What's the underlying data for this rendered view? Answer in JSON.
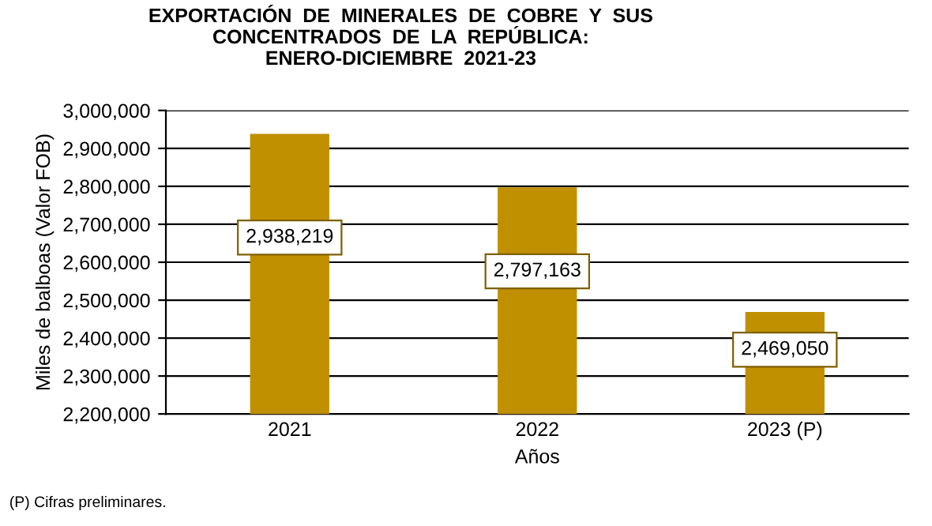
{
  "chart_data": {
    "type": "bar",
    "title": "EXPORTACIÓN  DE  MINERALES  DE  COBRE  Y  SUS\nCONCENTRADOS  DE  LA  REPÚBLICA:\nENERO-DICIEMBRE  2021-23",
    "xlabel": "Años",
    "ylabel": "Miles de balboas (Valor FOB)",
    "categories": [
      "2021",
      "2022",
      "2023 (P)"
    ],
    "values": [
      2938219,
      2797163,
      2469050
    ],
    "value_labels": [
      "2,938,219",
      "2,797,163",
      "2,469,050"
    ],
    "color": "#c09000",
    "ylim": [
      2200000,
      3000000
    ],
    "yticks": [
      {
        "value": 2200000,
        "label": "2,200,000"
      },
      {
        "value": 2300000,
        "label": "2,300,000"
      },
      {
        "value": 2400000,
        "label": "2,400,000"
      },
      {
        "value": 2500000,
        "label": "2,500,000"
      },
      {
        "value": 2600000,
        "label": "2,600,000"
      },
      {
        "value": 2700000,
        "label": "2,700,000"
      },
      {
        "value": 2800000,
        "label": "2,800,000"
      },
      {
        "value": 2900000,
        "label": "2,900,000"
      },
      {
        "value": 3000000,
        "label": "3,000,000"
      }
    ],
    "grid": "y",
    "annotations": [
      "(P) Cifras preliminares."
    ]
  }
}
